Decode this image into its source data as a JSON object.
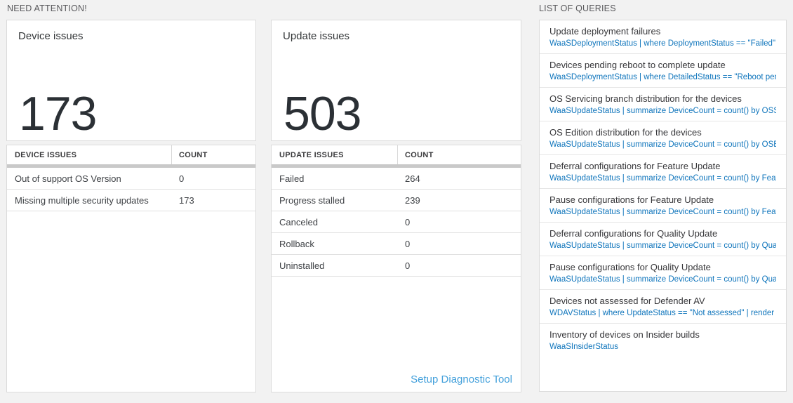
{
  "need_attention": {
    "label": "NEED ATTENTION!",
    "device_card": {
      "title": "Device issues",
      "count": "173"
    },
    "device_table": {
      "col1": "DEVICE ISSUES",
      "col2": "COUNT",
      "rows": [
        {
          "label": "Out of support OS Version",
          "count": "0"
        },
        {
          "label": "Missing multiple security updates",
          "count": "173"
        }
      ]
    },
    "update_card": {
      "title": "Update issues",
      "count": "503"
    },
    "update_table": {
      "col1": "UPDATE ISSUES",
      "col2": "COUNT",
      "rows": [
        {
          "label": "Failed",
          "count": "264"
        },
        {
          "label": "Progress stalled",
          "count": "239"
        },
        {
          "label": "Canceled",
          "count": "0"
        },
        {
          "label": "Rollback",
          "count": "0"
        },
        {
          "label": "Uninstalled",
          "count": "0"
        }
      ],
      "link": "Setup Diagnostic Tool"
    }
  },
  "queries": {
    "label": "LIST OF QUERIES",
    "items": [
      {
        "title": "Update deployment failures",
        "query": "WaaSDeploymentStatus | where DeploymentStatus == \"Failed\" |..."
      },
      {
        "title": "Devices pending reboot to complete update",
        "query": "WaaSDeploymentStatus | where DetailedStatus == \"Reboot pend..."
      },
      {
        "title": "OS Servicing branch distribution for the devices",
        "query": "WaaSUpdateStatus | summarize DeviceCount = count() by OSSer..."
      },
      {
        "title": "OS Edition distribution for the devices",
        "query": "WaaSUpdateStatus | summarize DeviceCount = count() by OSEdit..."
      },
      {
        "title": "Deferral configurations for Feature Update",
        "query": "WaaSUpdateStatus | summarize DeviceCount = count() by Featur..."
      },
      {
        "title": "Pause configurations for Feature Update",
        "query": "WaaSUpdateStatus | summarize DeviceCount = count() by Featur..."
      },
      {
        "title": "Deferral configurations for Quality Update",
        "query": "WaaSUpdateStatus | summarize DeviceCount = count() by Qualit..."
      },
      {
        "title": "Pause configurations for Quality Update",
        "query": "WaaSUpdateStatus | summarize DeviceCount = count() by Qualit..."
      },
      {
        "title": "Devices not assessed for Defender AV",
        "query": "WDAVStatus | where UpdateStatus == \"Not assessed\" | render ta..."
      },
      {
        "title": "Inventory of devices on Insider builds",
        "query": "WaaSInsiderStatus"
      }
    ]
  },
  "colors": {
    "page_bg": "#f2f2f2",
    "card_border": "#dbdbdb",
    "accent_blue_query": "#0f75bc",
    "accent_blue_link": "#43a0db",
    "number_text": "#2b3035",
    "header_bar": "#c9c9c9"
  }
}
